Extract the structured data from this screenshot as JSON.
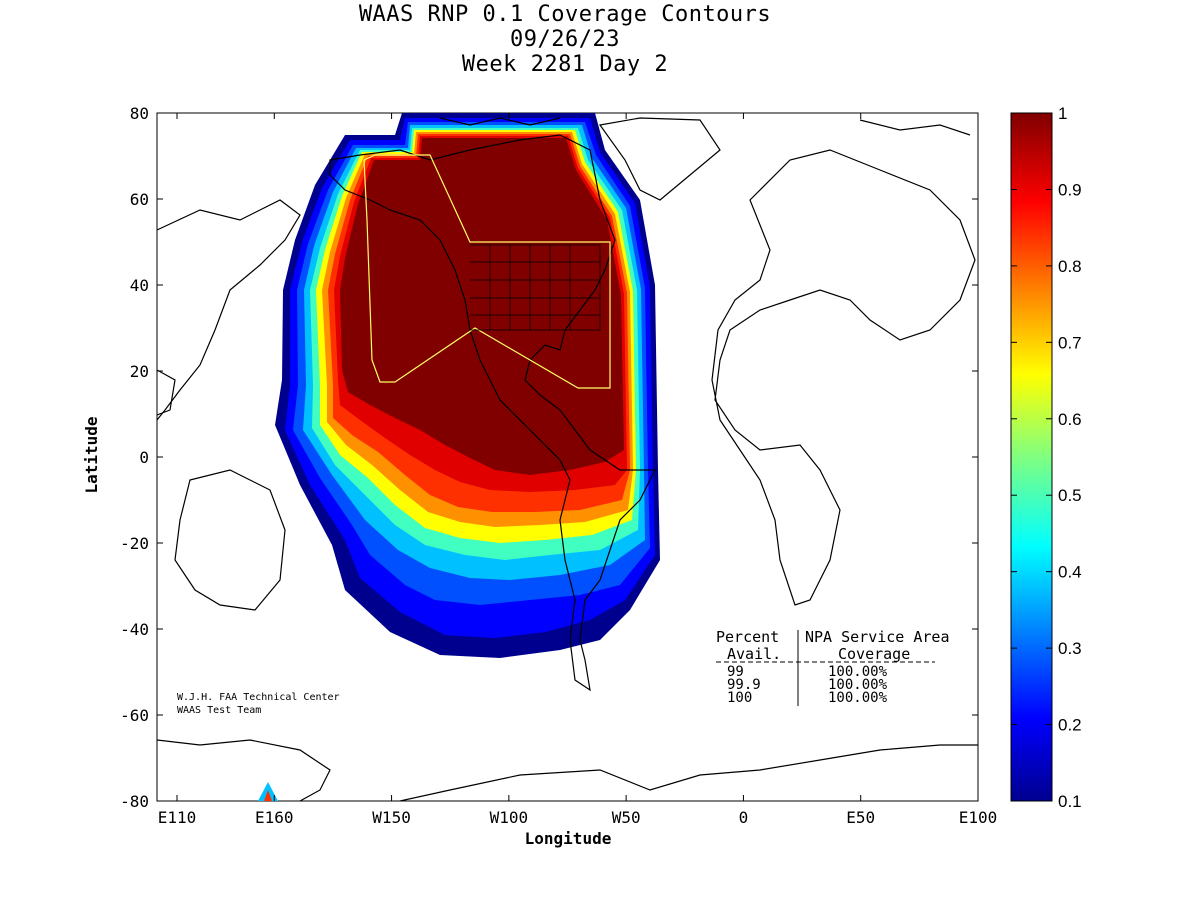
{
  "title": {
    "line1": "WAAS RNP 0.1 Coverage Contours",
    "line2": "09/26/23",
    "line3": "Week 2281 Day 2"
  },
  "axes": {
    "xlabel": "Longitude",
    "ylabel": "Latitude",
    "x_ticks": [
      "E110",
      "E160",
      "W150",
      "W100",
      "W50",
      "0",
      "E50",
      "E100"
    ],
    "y_ticks": [
      "80",
      "60",
      "40",
      "20",
      "0",
      "-20",
      "-40",
      "-60",
      "-80"
    ],
    "lon_range": [
      110,
      460
    ],
    "lat_range": [
      -80,
      80
    ]
  },
  "colorbar": {
    "ticks": [
      "1",
      "0.9",
      "0.8",
      "0.7",
      "0.6",
      "0.5",
      "0.4",
      "0.3",
      "0.2",
      "0.1"
    ],
    "min": 0.1,
    "max": 1.0
  },
  "credit": {
    "line1": "W.J.H. FAA Technical Center",
    "line2": "WAAS Test Team"
  },
  "stats_table": {
    "header_left": "Percent",
    "header_right": "NPA Service Area",
    "sub_left": "Avail.",
    "sub_right": "Coverage",
    "rows": [
      {
        "avail": "99",
        "coverage": "100.00%"
      },
      {
        "avail": "99.9",
        "coverage": "100.00%"
      },
      {
        "avail": "100",
        "coverage": "100.00%"
      }
    ]
  },
  "colors": {
    "dark_red": "#800000",
    "red": "#ff0000",
    "orange": "#ff8000",
    "yellow": "#ffff00",
    "cyan": "#00ffff",
    "blue": "#0000ff",
    "dark_blue": "#000080",
    "service_area_outline": "#ffff66"
  }
}
